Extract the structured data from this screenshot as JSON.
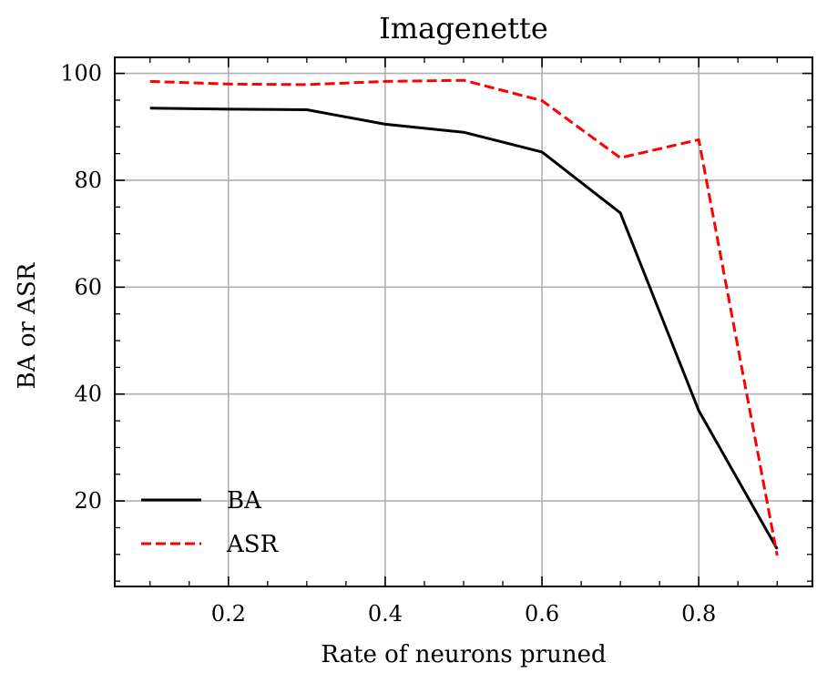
{
  "chart_data": {
    "type": "line",
    "title": "Imagenette",
    "xlabel": "Rate of neurons pruned",
    "ylabel": "BA or ASR",
    "xlim": [
      0.055,
      0.945
    ],
    "ylim": [
      4,
      103
    ],
    "xticks": [
      0.2,
      0.4,
      0.6,
      0.8
    ],
    "xtick_labels": [
      "0.2",
      "0.4",
      "0.6",
      "0.8"
    ],
    "yticks": [
      20,
      40,
      60,
      80,
      100
    ],
    "ytick_labels": [
      "20",
      "40",
      "60",
      "80",
      "100"
    ],
    "grid": true,
    "legend_position": "lower-left",
    "x": [
      0.1,
      0.2,
      0.3,
      0.4,
      0.5,
      0.6,
      0.7,
      0.8,
      0.9
    ],
    "series": [
      {
        "name": "BA",
        "color": "#000000",
        "style": "solid",
        "values": [
          93.5,
          93.3,
          93.2,
          90.5,
          89.0,
          85.3,
          73.9,
          36.9,
          11.0
        ]
      },
      {
        "name": "ASR",
        "color": "#ff0000",
        "style": "dashed",
        "values": [
          98.5,
          98.0,
          97.9,
          98.5,
          98.7,
          94.9,
          84.2,
          87.6,
          9.8
        ]
      }
    ]
  }
}
